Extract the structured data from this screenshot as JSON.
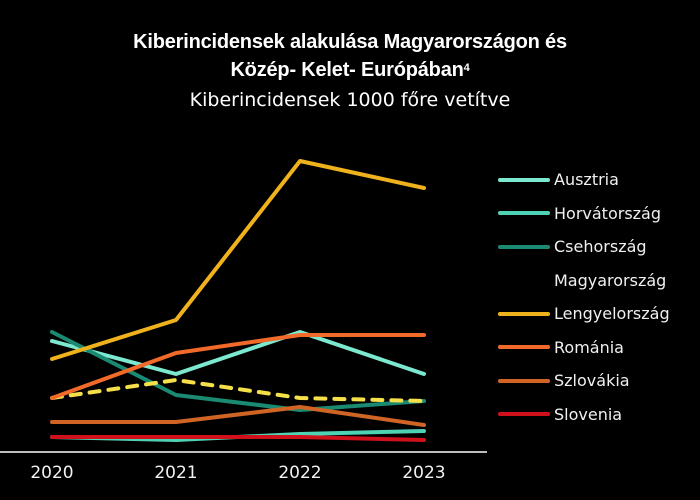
{
  "title": {
    "line1": "Kiberincidensek alakulása Magyarországon és",
    "line2": "Közép- Kelet- Európában",
    "footnote": "4",
    "subtitle": "Kiberincidensek 1000 főre vetítve"
  },
  "chart_data": {
    "type": "line",
    "title": "Kiberincidensek alakulása Magyarországon és Közép- Kelet- Európában",
    "subtitle": "Kiberincidensek 1000 főre vetítve",
    "xlabel": "",
    "ylabel": "",
    "y_axis_shown": false,
    "y_units_note": "relative scale estimated from pixel positions (no y-axis tick labels shown)",
    "ylim": [
      0,
      100
    ],
    "grid": false,
    "legend_position": "right",
    "categories": [
      "2020",
      "2021",
      "2022",
      "2023"
    ],
    "series": [
      {
        "name": "Ausztria",
        "color": "#7de8d0",
        "dashed": false,
        "values": [
          37,
          26,
          40,
          26
        ]
      },
      {
        "name": "Horvátország",
        "color": "#4fd1b4",
        "dashed": false,
        "values": [
          5,
          4,
          6,
          7
        ]
      },
      {
        "name": "Csehország",
        "color": "#1a8a72",
        "dashed": false,
        "values": [
          40,
          19,
          14,
          17
        ]
      },
      {
        "name": "Magyarország",
        "color": "#f5e04a",
        "dashed": true,
        "values": [
          18,
          24,
          18,
          17
        ]
      },
      {
        "name": "Lengyelország",
        "color": "#f0b21c",
        "dashed": false,
        "values": [
          31,
          44,
          97,
          88
        ]
      },
      {
        "name": "Románia",
        "color": "#f26a2a",
        "dashed": false,
        "values": [
          18,
          33,
          39,
          39
        ]
      },
      {
        "name": "Szlovákia",
        "color": "#cf6424",
        "dashed": false,
        "values": [
          10,
          10,
          15,
          9
        ]
      },
      {
        "name": "Slovenia",
        "color": "#d0101a",
        "dashed": false,
        "values": [
          5,
          5,
          5,
          4
        ]
      }
    ]
  }
}
